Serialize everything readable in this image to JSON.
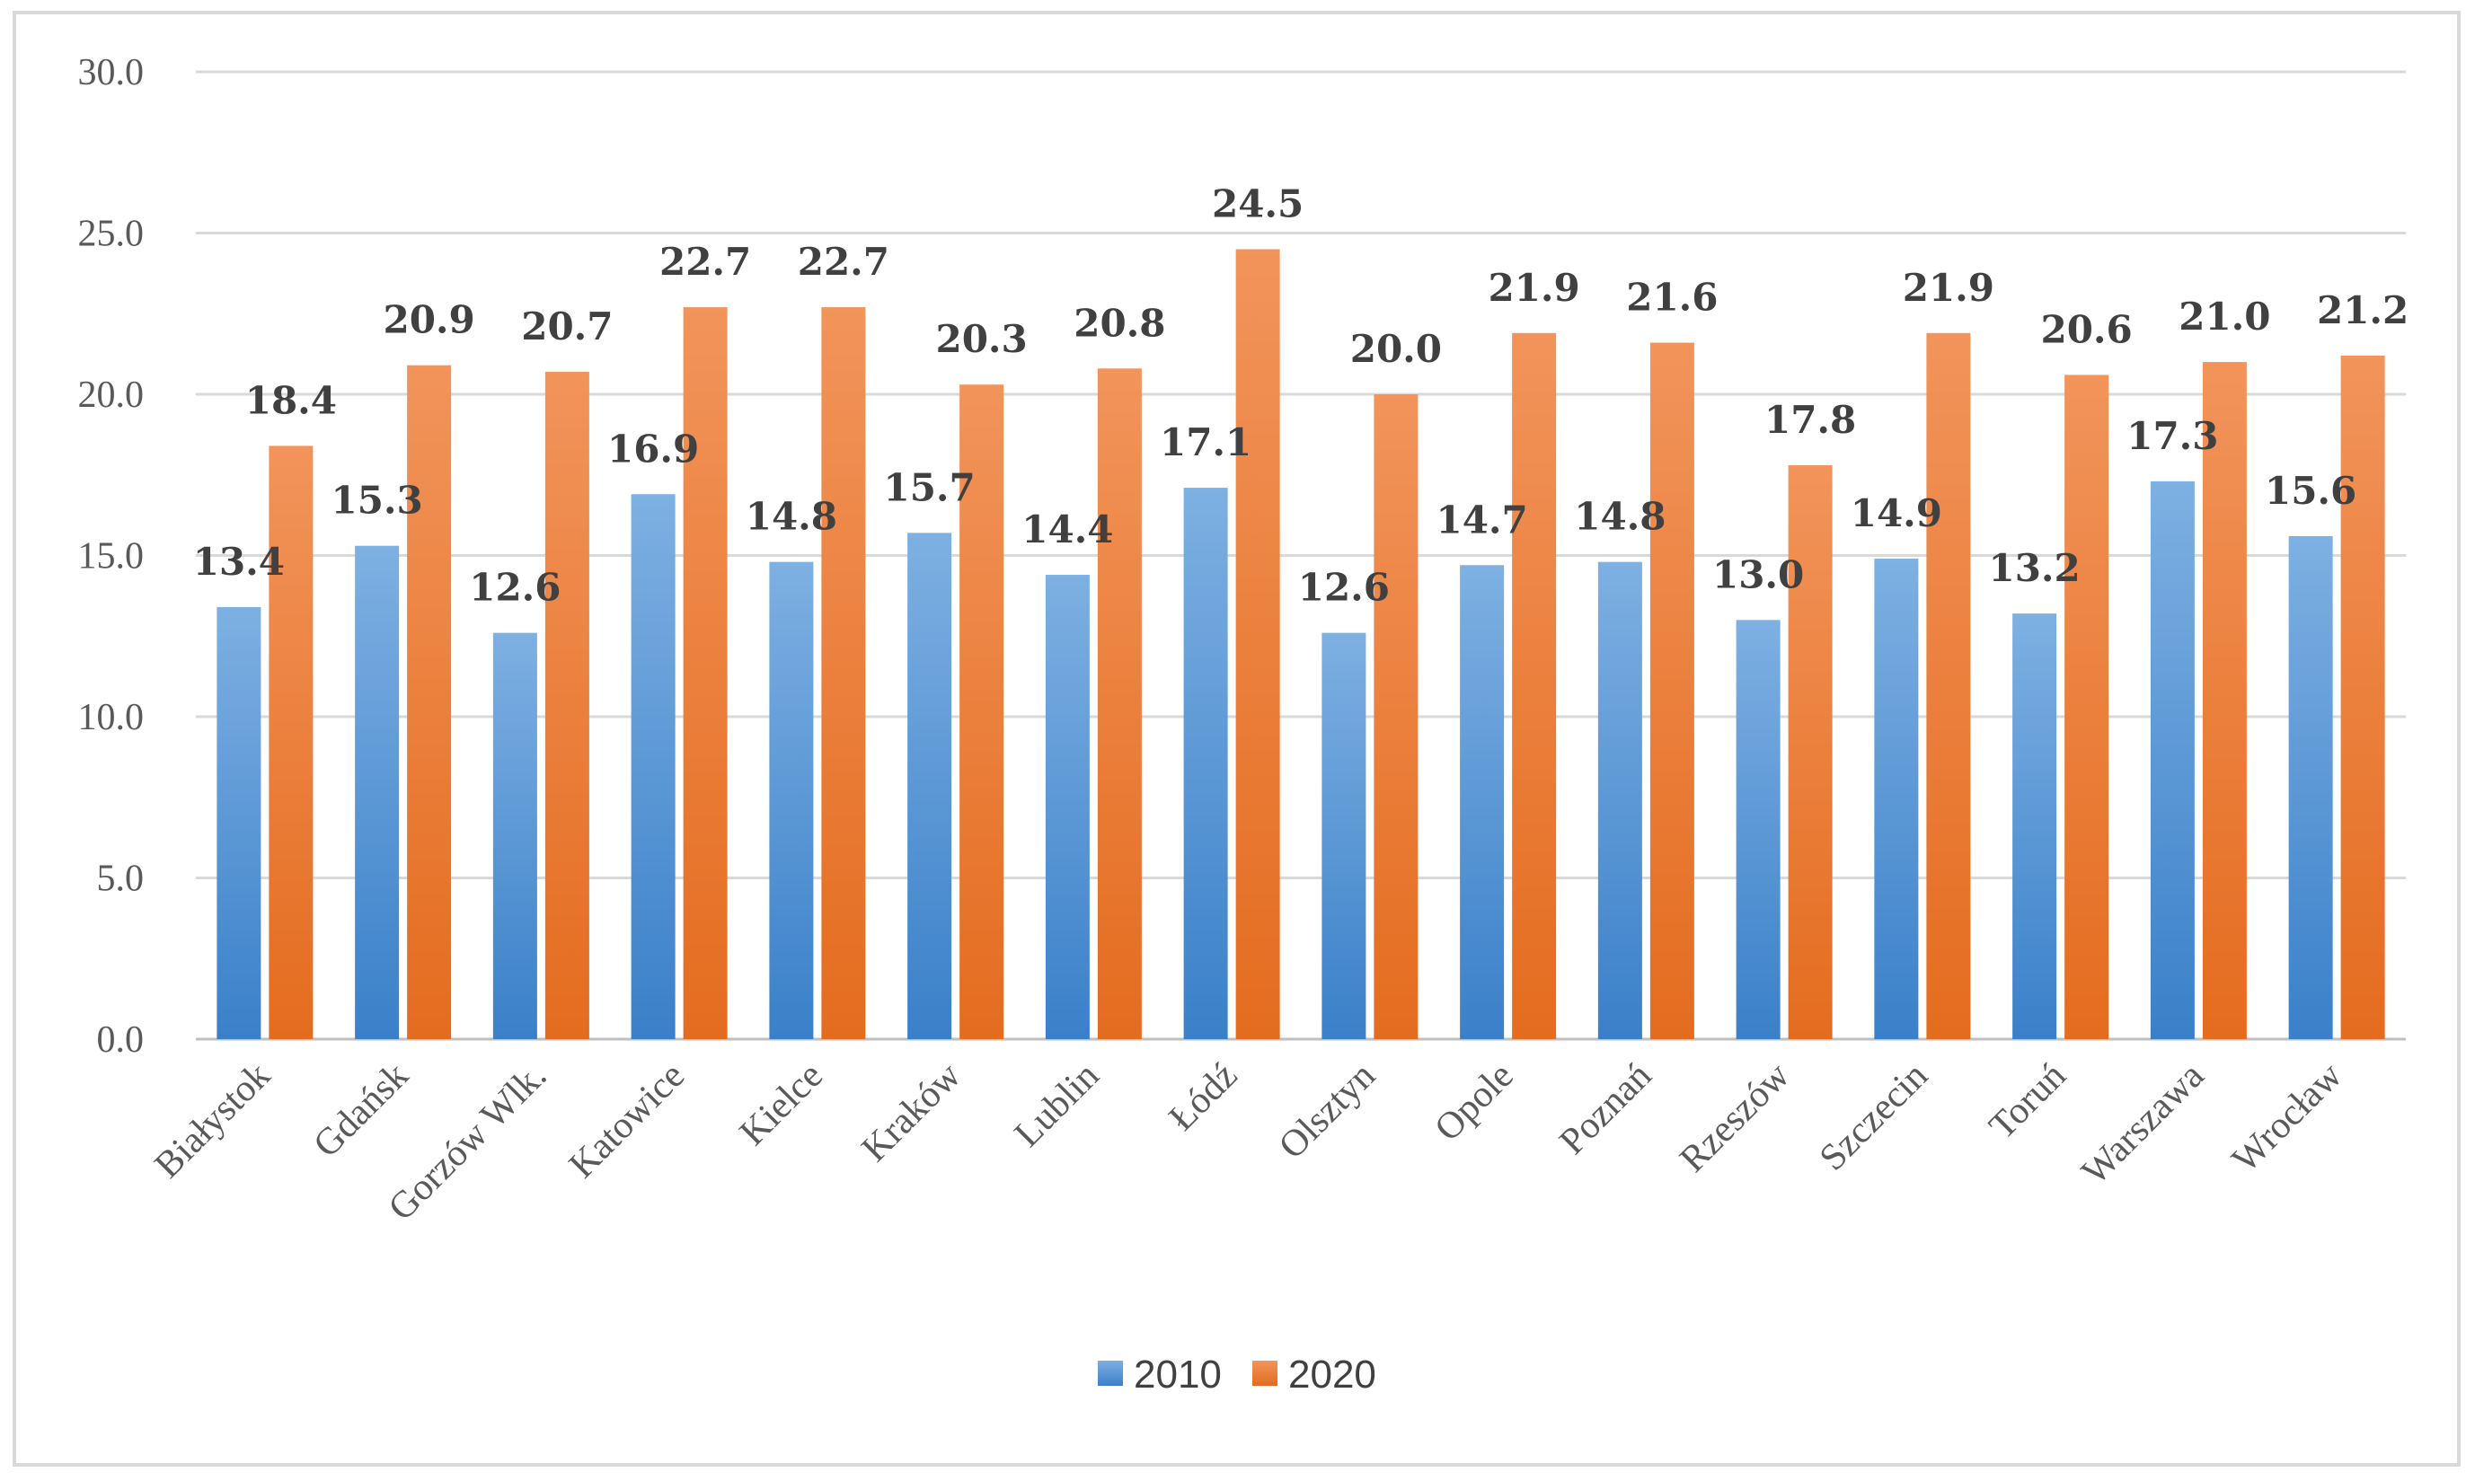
{
  "chart_data": {
    "type": "bar",
    "title": "",
    "xlabel": "",
    "ylabel": "",
    "ylim": [
      0,
      30
    ],
    "yticks": [
      0,
      5,
      10,
      15,
      20,
      25,
      30
    ],
    "grid": true,
    "legend_position": "bottom",
    "categories": [
      "Białystok",
      "Gdańsk",
      "Gorzów Wlk.",
      "Katowice",
      "Kielce",
      "Kraków",
      "Lublin",
      "Łódź",
      "Olsztyn",
      "Opole",
      "Poznań",
      "Rzeszów",
      "Szczecin",
      "Toruń",
      "Warszawa",
      "Wrocław"
    ],
    "series": [
      {
        "name": "2010",
        "color": "#5b9bd5",
        "values": [
          13.4,
          15.3,
          12.6,
          16.9,
          14.8,
          15.7,
          14.4,
          17.1,
          12.6,
          14.7,
          14.8,
          13.0,
          14.9,
          13.2,
          17.3,
          15.6
        ]
      },
      {
        "name": "2020",
        "color": "#ed7d31",
        "values": [
          18.4,
          20.9,
          20.7,
          22.7,
          22.7,
          20.3,
          20.8,
          24.5,
          20.0,
          21.9,
          21.6,
          17.8,
          21.9,
          20.6,
          21.0,
          21.2
        ]
      }
    ]
  }
}
